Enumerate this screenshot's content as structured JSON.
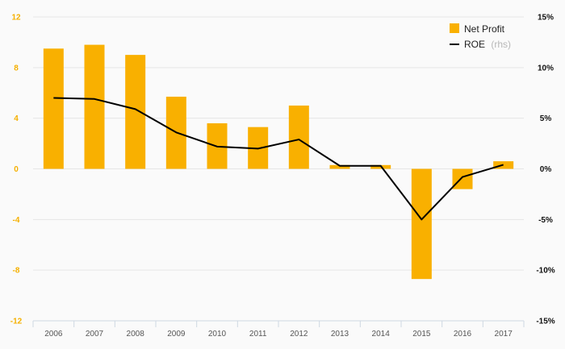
{
  "chart_data": {
    "type": "bar",
    "categories": [
      "2006",
      "2007",
      "2008",
      "2009",
      "2010",
      "2011",
      "2012",
      "2013",
      "2014",
      "2015",
      "2016",
      "2017"
    ],
    "series": [
      {
        "name": "Net Profit",
        "type": "bar",
        "axis": "left",
        "color": "#f9b000",
        "values": [
          9.5,
          9.8,
          9.0,
          5.7,
          3.6,
          3.3,
          5.0,
          0.3,
          0.3,
          -8.7,
          -1.6,
          0.6
        ]
      },
      {
        "name": "ROE",
        "type": "line",
        "axis": "right",
        "color": "#000000",
        "values": [
          7.0,
          6.9,
          5.9,
          3.6,
          2.2,
          2.0,
          2.9,
          0.3,
          0.3,
          -5.0,
          -0.8,
          0.4
        ]
      }
    ],
    "left_axis": {
      "ylim": [
        -12,
        12
      ],
      "ticks": [
        "12",
        "8",
        "4",
        "0",
        "-4",
        "-8",
        "-12"
      ],
      "tick_values": [
        12,
        8,
        4,
        0,
        -4,
        -8,
        -12
      ],
      "color": "#f5b000"
    },
    "right_axis": {
      "ylim": [
        -15,
        15
      ],
      "ticks": [
        "15%",
        "10%",
        "5%",
        "0%",
        "-5%",
        "-10%",
        "-15%"
      ],
      "tick_values": [
        15,
        10,
        5,
        0,
        -5,
        -10,
        -15
      ]
    },
    "legend": {
      "placement": "top-right",
      "items": [
        {
          "label": "Net Profit",
          "suffix": ""
        },
        {
          "label": "ROE",
          "suffix": "(rhs)"
        }
      ]
    },
    "grid": true
  }
}
